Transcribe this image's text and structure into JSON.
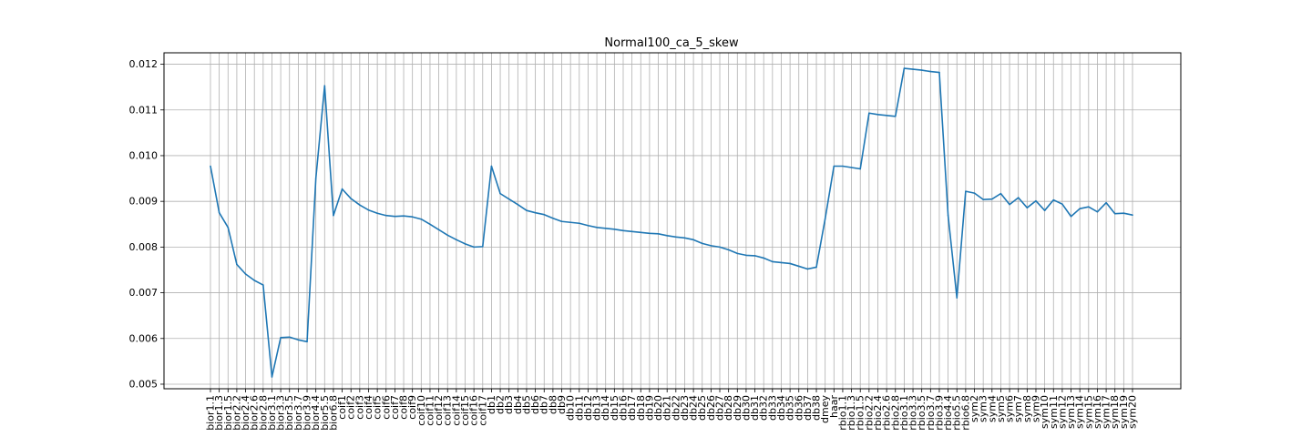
{
  "chart_data": {
    "type": "line",
    "title": "Normal100_ca_5_skew",
    "xlabel": "",
    "ylabel": "",
    "ylim": [
      0.0049,
      0.01225
    ],
    "yticks": [
      "0.005",
      "0.006",
      "0.007",
      "0.008",
      "0.009",
      "0.010",
      "0.011",
      "0.012"
    ],
    "grid": true,
    "line_color": "#1f77b4",
    "categories": [
      "bior1.1",
      "bior1.3",
      "bior1.5",
      "bior2.2",
      "bior2.4",
      "bior2.6",
      "bior2.8",
      "bior3.1",
      "bior3.3",
      "bior3.5",
      "bior3.7",
      "bior3.9",
      "bior4.4",
      "bior5.5",
      "bior6.8",
      "coif1",
      "coif2",
      "coif3",
      "coif4",
      "coif5",
      "coif6",
      "coif7",
      "coif8",
      "coif9",
      "coif10",
      "coif11",
      "coif12",
      "coif13",
      "coif14",
      "coif15",
      "coif16",
      "coif17",
      "db1",
      "db2",
      "db3",
      "db4",
      "db5",
      "db6",
      "db7",
      "db8",
      "db9",
      "db10",
      "db11",
      "db12",
      "db13",
      "db14",
      "db15",
      "db16",
      "db17",
      "db18",
      "db19",
      "db20",
      "db21",
      "db22",
      "db23",
      "db24",
      "db25",
      "db26",
      "db27",
      "db28",
      "db29",
      "db30",
      "db31",
      "db32",
      "db33",
      "db34",
      "db35",
      "db36",
      "db37",
      "db38",
      "dmey",
      "haar",
      "rbio1.1",
      "rbio1.3",
      "rbio1.5",
      "rbio2.2",
      "rbio2.4",
      "rbio2.6",
      "rbio2.8",
      "rbio3.1",
      "rbio3.3",
      "rbio3.5",
      "rbio3.7",
      "rbio3.9",
      "rbio4.4",
      "rbio5.5",
      "rbio6.8",
      "sym2",
      "sym3",
      "sym4",
      "sym5",
      "sym6",
      "sym7",
      "sym8",
      "sym9",
      "sym10",
      "sym11",
      "sym12",
      "sym13",
      "sym14",
      "sym15",
      "sym16",
      "sym17",
      "sym18",
      "sym19",
      "sym20"
    ],
    "values": [
      0.00977,
      0.00875,
      0.00843,
      0.00762,
      0.00741,
      0.00727,
      0.00717,
      0.00516,
      0.00602,
      0.00603,
      0.00597,
      0.00593,
      0.0095,
      0.01153,
      0.00869,
      0.00927,
      0.00906,
      0.00892,
      0.00881,
      0.00874,
      0.00869,
      0.00867,
      0.00868,
      0.00866,
      0.00861,
      0.0085,
      0.00838,
      0.00826,
      0.00816,
      0.00807,
      0.008,
      0.00801,
      0.00977,
      0.00917,
      0.00905,
      0.00893,
      0.0088,
      0.00875,
      0.00871,
      0.00863,
      0.00856,
      0.00854,
      0.00852,
      0.00847,
      0.00843,
      0.00841,
      0.00839,
      0.00836,
      0.00834,
      0.00832,
      0.0083,
      0.00829,
      0.00825,
      0.00822,
      0.0082,
      0.00816,
      0.00808,
      0.00803,
      0.008,
      0.00794,
      0.00786,
      0.00782,
      0.00781,
      0.00776,
      0.00768,
      0.00766,
      0.00764,
      0.00758,
      0.00752,
      0.00756,
      0.00862,
      0.00977,
      0.00977,
      0.00974,
      0.00971,
      0.01093,
      0.0109,
      0.01088,
      0.01086,
      0.01191,
      0.01189,
      0.01187,
      0.01184,
      0.01182,
      0.00869,
      0.00689,
      0.00922,
      0.00918,
      0.00904,
      0.00905,
      0.00917,
      0.00893,
      0.00908,
      0.00886,
      0.00901,
      0.0088,
      0.00903,
      0.00894,
      0.00867,
      0.00884,
      0.00888,
      0.00877,
      0.00897,
      0.00873,
      0.00874,
      0.0087
    ]
  }
}
